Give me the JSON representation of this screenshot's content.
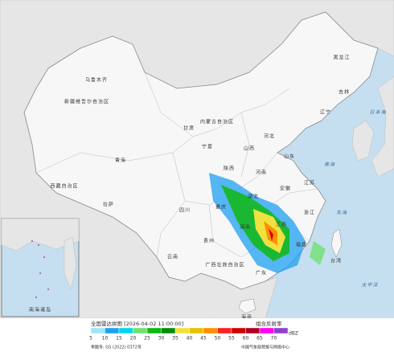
{
  "map": {
    "labels": [
      "新疆维吾尔自治区",
      "西藏自治区",
      "青海",
      "甘肃",
      "内蒙古自治区",
      "黑龙江",
      "吉林",
      "辽宁",
      "河北",
      "山西",
      "山东",
      "宁夏",
      "陕西",
      "河南",
      "四川",
      "重庆",
      "湖北",
      "安徽",
      "江苏",
      "湖南",
      "江西",
      "浙江",
      "贵州",
      "云南",
      "广西壮族自治区",
      "广东",
      "福建",
      "台湾",
      "海南",
      "日本海",
      "黄海",
      "东海",
      "太平洋",
      "拉萨",
      "乌鲁木齐"
    ],
    "inset_label": "南海诸岛"
  },
  "legend": {
    "title": "全国雷达拼图 [2026-04-02 11:00:00]",
    "product": "组合反射率",
    "unit": "dBZ",
    "ticks": [
      5,
      10,
      15,
      20,
      25,
      30,
      35,
      40,
      45,
      50,
      55,
      60,
      65,
      70
    ],
    "colors": [
      "#9ee6fa",
      "#1ea0f0",
      "#00d8e8",
      "#70e070",
      "#10b810",
      "#0a8a0a",
      "#f0e040",
      "#e8c000",
      "#ff9000",
      "#ff2020",
      "#d00000",
      "#b00020",
      "#ff00f0",
      "#9040d0"
    ],
    "approval": "审图号: GS (2022) 0372号",
    "source": "中国气象局预报与网络中心"
  }
}
